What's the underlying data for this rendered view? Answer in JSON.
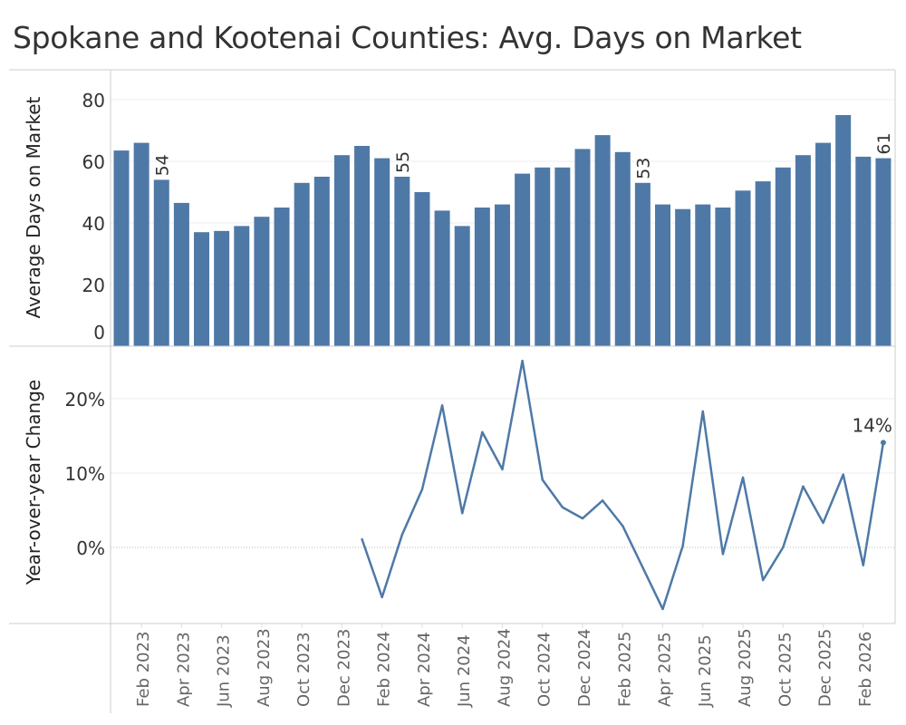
{
  "title": "Spokane and Kootenai Counties: Avg. Days on Market",
  "colors": {
    "bar": "#4e79a7",
    "line": "#4e79a7",
    "text": "#333333",
    "axis": "#666666",
    "grid": "#eeeeee"
  },
  "chart_data": [
    {
      "type": "bar",
      "ylabel": "Average Days on Market",
      "ylim": [
        0,
        88
      ],
      "yticks": [
        0,
        20,
        40,
        60,
        80
      ],
      "ytick_labels": [
        "0",
        "20",
        "40",
        "60",
        "80"
      ],
      "categories": [
        "Jan 2023",
        "Feb 2023",
        "Mar 2023",
        "Apr 2023",
        "May 2023",
        "Jun 2023",
        "Jul 2023",
        "Aug 2023",
        "Sep 2023",
        "Oct 2023",
        "Nov 2023",
        "Dec 2023",
        "Jan 2024",
        "Feb 2024",
        "Mar 2024",
        "Apr 2024",
        "May 2024",
        "Jun 2024",
        "Jul 2024",
        "Aug 2024",
        "Sep 2024",
        "Oct 2024",
        "Nov 2024",
        "Dec 2024",
        "Jan 2025",
        "Feb 2025",
        "Mar 2025",
        "Apr 2025",
        "May 2025",
        "Jun 2025",
        "Jul 2025",
        "Aug 2025",
        "Sep 2025",
        "Oct 2025",
        "Nov 2025",
        "Dec 2025",
        "Jan 2026",
        "Feb 2026",
        "Mar 2026"
      ],
      "values": [
        63.5,
        66,
        54,
        46.5,
        37,
        37.4,
        39,
        42,
        45,
        53,
        55,
        62,
        65,
        61,
        55,
        50,
        44,
        39,
        45,
        46,
        56,
        58,
        58,
        64,
        68.5,
        63,
        53,
        46,
        44.5,
        46,
        45,
        50.5,
        53.5,
        58,
        62,
        66,
        75,
        61.5,
        61
      ],
      "data_labels": [
        {
          "index": 2,
          "text": "54"
        },
        {
          "index": 14,
          "text": "55"
        },
        {
          "index": 26,
          "text": "53"
        },
        {
          "index": 38,
          "text": "61"
        }
      ]
    },
    {
      "type": "line",
      "ylabel": "Year-over-year Change",
      "ylim": [
        -10,
        26
      ],
      "yticks": [
        0,
        10,
        20
      ],
      "ytick_labels": [
        "0%",
        "10%",
        "20%"
      ],
      "start_index": 12,
      "values": [
        1.1,
        -6.7,
        1.7,
        7.8,
        19.1,
        4.6,
        15.5,
        10.5,
        25.1,
        9.1,
        5.4,
        3.9,
        6.3,
        2.9,
        -2.7,
        -8.3,
        0.2,
        18.3,
        -0.9,
        9.4,
        -4.4,
        0,
        8.2,
        3.3,
        9.8,
        -2.4,
        14.1
      ],
      "data_labels": [
        {
          "index": 26,
          "text": "14%"
        }
      ]
    }
  ],
  "x_tick_labels": [
    {
      "index": 1,
      "text": "Feb 2023"
    },
    {
      "index": 3,
      "text": "Apr 2023"
    },
    {
      "index": 5,
      "text": "Jun 2023"
    },
    {
      "index": 7,
      "text": "Aug 2023"
    },
    {
      "index": 9,
      "text": "Oct 2023"
    },
    {
      "index": 11,
      "text": "Dec 2023"
    },
    {
      "index": 13,
      "text": "Feb 2024"
    },
    {
      "index": 15,
      "text": "Apr 2024"
    },
    {
      "index": 17,
      "text": "Jun 2024"
    },
    {
      "index": 19,
      "text": "Aug 2024"
    },
    {
      "index": 21,
      "text": "Oct 2024"
    },
    {
      "index": 23,
      "text": "Dec 2024"
    },
    {
      "index": 25,
      "text": "Feb 2025"
    },
    {
      "index": 27,
      "text": "Apr 2025"
    },
    {
      "index": 29,
      "text": "Jun 2025"
    },
    {
      "index": 31,
      "text": "Aug 2025"
    },
    {
      "index": 33,
      "text": "Oct 2025"
    },
    {
      "index": 35,
      "text": "Dec 2025"
    },
    {
      "index": 37,
      "text": "Feb 2026"
    }
  ]
}
